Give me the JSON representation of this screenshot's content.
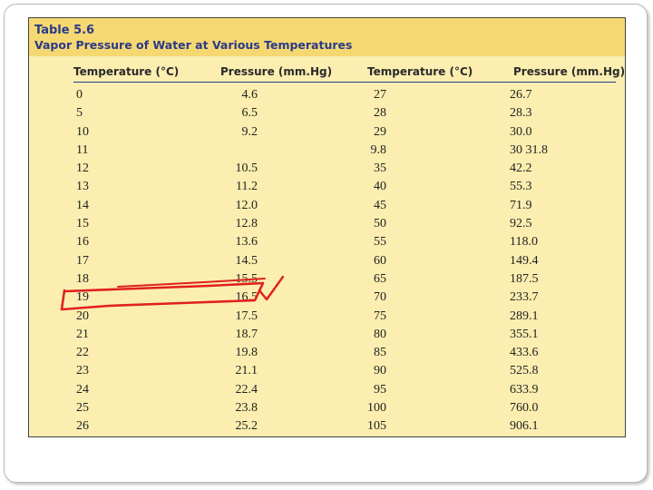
{
  "table": {
    "number": "Table 5.6",
    "title": "Vapor Pressure of Water at Various Temperatures",
    "columns": [
      "Temperature (°C)",
      "Pressure (mm.Hg)",
      "Temperature (°C)",
      "Pressure (mm.Hg)"
    ],
    "rows": [
      [
        "0",
        "4.6",
        "27",
        "26.7"
      ],
      [
        "5",
        "6.5",
        "28",
        "28.3"
      ],
      [
        "10",
        "9.2",
        "29",
        "30.0"
      ],
      [
        "11",
        "",
        "9.8",
        "30 31.8"
      ],
      [
        "12",
        "10.5",
        "35",
        "42.2"
      ],
      [
        "13",
        "11.2",
        "40",
        "55.3"
      ],
      [
        "14",
        "12.0",
        "45",
        "71.9"
      ],
      [
        "15",
        "12.8",
        "50",
        "92.5"
      ],
      [
        "16",
        "13.6",
        "55",
        "118.0"
      ],
      [
        "17",
        "14.5",
        "60",
        "149.4"
      ],
      [
        "18",
        "15.5",
        "65",
        "187.5"
      ],
      [
        "19",
        "16.5",
        "70",
        "233.7"
      ],
      [
        "20",
        "17.5",
        "75",
        "289.1"
      ],
      [
        "21",
        "18.7",
        "80",
        "355.1"
      ],
      [
        "22",
        "19.8",
        "85",
        "433.6"
      ],
      [
        "23",
        "21.1",
        "90",
        "525.8"
      ],
      [
        "24",
        "22.4",
        "95",
        "633.9"
      ],
      [
        "25",
        "23.8",
        "100",
        "760.0"
      ],
      [
        "26",
        "25.2",
        "105",
        "906.1"
      ]
    ]
  },
  "annotation": {
    "description": "red hand-drawn box around row 19 with checkmark",
    "color": "#e0201e"
  }
}
